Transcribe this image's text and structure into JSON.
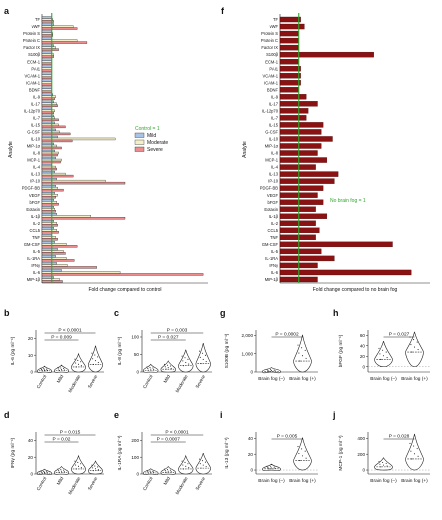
{
  "panel_letters": [
    "a",
    "f",
    "b",
    "c",
    "d",
    "e",
    "g",
    "h",
    "i",
    "j"
  ],
  "colors": {
    "mild": "#a9c3e6",
    "moderate": "#f3efc9",
    "severe": "#ec8c8c",
    "fog": "#8b1212",
    "ref_green": "#2fa82f",
    "bar_edge": "#222222",
    "violin_fill": "#ffffff"
  },
  "chart_data": [
    {
      "id": "a",
      "type": "bar",
      "orientation": "horizontal",
      "ylabel": "Analyte",
      "xlabel": "Fold change compared to control",
      "ref_line_label": "Control = 1",
      "legend": [
        "Mild",
        "Moderate",
        "Severe"
      ],
      "legend_position": "center-right",
      "xlim": [
        0,
        17
      ],
      "categories": [
        "TF",
        "vWF",
        "Protein S",
        "Protein C",
        "Factor IX",
        "S100β",
        "ECM-1",
        "PAI1",
        "VCAM-1",
        "ICAM-1",
        "BDNF",
        "IL-9",
        "IL-17",
        "IL-12p70",
        "IL-7",
        "IL-15",
        "G-CSF",
        "IL-10",
        "MIP-1α",
        "IL-8",
        "MCP-1",
        "IL-4",
        "IL-13",
        "IP-10",
        "PDGF-BB",
        "VEGF",
        "bFGF",
        "Eotaxin",
        "IL-1β",
        "IL-2",
        "CCL5",
        "TNF",
        "GM-CSF",
        "IL-5",
        "IL-1RA",
        "IFNγ",
        "IL-6",
        "MIP-1β"
      ],
      "series": [
        {
          "name": "Mild",
          "values": [
            1.0,
            1.2,
            1.0,
            1.0,
            1.2,
            1.0,
            1.0,
            1.0,
            1.0,
            1.0,
            1.0,
            1.1,
            1.2,
            1.0,
            1.2,
            1.3,
            1.4,
            1.6,
            1.2,
            1.3,
            1.4,
            1.0,
            1.3,
            1.5,
            1.4,
            1.3,
            1.2,
            1.2,
            1.5,
            1.2,
            1.2,
            1.0,
            1.3,
            1.6,
            1.4,
            1.5,
            2.0,
            1.2
          ]
        },
        {
          "name": "Moderate",
          "values": [
            1.1,
            3.2,
            1.1,
            3.6,
            1.4,
            1.2,
            1.0,
            1.0,
            1.0,
            1.0,
            1.0,
            1.4,
            1.5,
            1.3,
            1.3,
            1.7,
            1.8,
            7.5,
            1.5,
            1.7,
            2.0,
            1.4,
            2.4,
            6.5,
            1.6,
            1.6,
            1.5,
            1.3,
            5.0,
            1.5,
            1.5,
            1.4,
            2.5,
            2.2,
            2.5,
            2.6,
            8.0,
            1.8
          ]
        },
        {
          "name": "Severe",
          "values": [
            1.2,
            3.6,
            1.1,
            4.6,
            1.7,
            1.2,
            1.0,
            1.0,
            1.0,
            1.0,
            1.0,
            1.3,
            1.6,
            1.2,
            1.7,
            2.4,
            2.9,
            3.1,
            2.0,
            1.6,
            1.9,
            1.5,
            3.2,
            8.5,
            2.2,
            1.4,
            1.7,
            1.4,
            8.5,
            1.6,
            1.7,
            1.6,
            3.6,
            2.4,
            3.3,
            5.6,
            16.5,
            2.1
          ]
        }
      ]
    },
    {
      "id": "f",
      "type": "bar",
      "orientation": "horizontal",
      "ylabel": "Analyte",
      "xlabel": "Fold change compared to no brain fog",
      "ref_line_label": "No brain fog = 1",
      "xlim": [
        0,
        8
      ],
      "categories": [
        "TF",
        "vWF",
        "Protein S",
        "Protein C",
        "Factor IX",
        "S100β",
        "ECM-1",
        "PAI1",
        "VCAM-1",
        "ICAM-1",
        "BDNF",
        "IL-9",
        "IL-17",
        "IL-12p70",
        "IL-7",
        "IL-15",
        "G-CSF",
        "IL-10",
        "MIP-1α",
        "IL-8",
        "MCP-1",
        "IL-4",
        "IL-13",
        "IP-10",
        "PDGF-BB",
        "VEGF",
        "bFGF",
        "Eotaxin",
        "IL-1β",
        "IL-2",
        "CCL5",
        "TNF",
        "GM-CSF",
        "IL-5",
        "IL-1RA",
        "IFNγ",
        "IL-6",
        "MIP-1β"
      ],
      "values": [
        1.1,
        1.3,
        1.0,
        1.0,
        1.0,
        5.0,
        1.0,
        1.1,
        1.1,
        1.1,
        1.0,
        1.4,
        2.0,
        1.5,
        1.4,
        2.3,
        2.2,
        2.8,
        2.2,
        2.0,
        2.5,
        1.9,
        3.1,
        2.9,
        2.3,
        2.0,
        2.3,
        1.9,
        2.5,
        1.9,
        2.1,
        1.9,
        6.0,
        2.2,
        2.9,
        2.0,
        7.0,
        2.0
      ]
    },
    {
      "id": "b",
      "type": "violin",
      "ylabel": "IL-6 (pg ml⁻¹)",
      "categories": [
        "Control",
        "Mild",
        "Moderate",
        "Severe"
      ],
      "yticks": [
        "0",
        "10",
        "20"
      ],
      "ylim": [
        0,
        25
      ],
      "comparisons": [
        {
          "label": "P = 0.009",
          "pair": [
            "Control",
            "Moderate"
          ]
        },
        {
          "label": "P < 0.0001",
          "pair": [
            "Control",
            "Severe"
          ]
        }
      ],
      "series": [
        {
          "values": [
            0.7,
            0.9,
            3.0,
            4.5
          ]
        }
      ]
    },
    {
      "id": "c",
      "type": "violin",
      "ylabel": "IL-8 (pg ml⁻¹)",
      "categories": [
        "Control",
        "Mild",
        "Moderate",
        "Severe"
      ],
      "yticks": [
        "0",
        "50",
        "100"
      ],
      "ylim": [
        0,
        120
      ],
      "comparisons": [
        {
          "label": "P = 0.027",
          "pair": [
            "Control",
            "Moderate"
          ]
        },
        {
          "label": "P = 0.003",
          "pair": [
            "Control",
            "Severe"
          ]
        }
      ],
      "series": [
        {
          "values": [
            5,
            8,
            18,
            24
          ]
        }
      ]
    },
    {
      "id": "d",
      "type": "violin",
      "ylabel": "IFNγ (pg ml⁻¹)",
      "categories": [
        "Control",
        "Mild",
        "Moderate",
        "Severe"
      ],
      "yticks": [
        "0",
        "20",
        "40"
      ],
      "ylim": [
        0,
        50
      ],
      "comparisons": [
        {
          "label": "P = 0.02",
          "pair": [
            "Control",
            "Moderate"
          ]
        },
        {
          "label": "P = 0.015",
          "pair": [
            "Control",
            "Severe"
          ]
        }
      ],
      "series": [
        {
          "values": [
            1,
            2,
            6,
            4
          ]
        }
      ]
    },
    {
      "id": "e",
      "type": "violin",
      "ylabel": "IL-1RA (pg ml⁻¹)",
      "categories": [
        "Control",
        "Mild",
        "Moderate",
        "Severe"
      ],
      "yticks": [
        "0",
        "100",
        "200"
      ],
      "ylim": [
        0,
        250
      ],
      "comparisons": [
        {
          "label": "P = 0.0007",
          "pair": [
            "Control",
            "Moderate"
          ]
        },
        {
          "label": "P < 0.0001",
          "pair": [
            "Control",
            "Severe"
          ]
        }
      ],
      "series": [
        {
          "values": [
            6,
            10,
            30,
            35
          ]
        }
      ]
    },
    {
      "id": "g",
      "type": "violin",
      "ylabel": "S100B (pg ml⁻¹)",
      "categories": [
        "Brain fog (–)",
        "Brain fog (+)"
      ],
      "yticks": [
        "0",
        "1,000",
        "2,000"
      ],
      "ylim": [
        0,
        2300
      ],
      "comparisons": [
        {
          "label": "P = 0.0002",
          "pair": [
            "Brain fog (–)",
            "Brain fog (+)"
          ]
        }
      ],
      "series": [
        {
          "values": [
            40,
            600
          ]
        }
      ]
    },
    {
      "id": "h",
      "type": "violin",
      "ylabel": "bFGF (pg ml⁻¹)",
      "categories": [
        "Brain fog (–)",
        "Brain fog (+)"
      ],
      "yticks": [
        "0",
        "20",
        "40",
        "60"
      ],
      "ylim": [
        -10,
        70
      ],
      "comparisons": [
        {
          "label": "P = 0.027",
          "pair": [
            "Brain fog (–)",
            "Brain fog (+)"
          ]
        }
      ],
      "series": [
        {
          "values": [
            14,
            28
          ]
        }
      ]
    },
    {
      "id": "i",
      "type": "violin",
      "ylabel": "IL-13 (pg ml⁻¹)",
      "categories": [
        "Brain fog (–)",
        "Brain fog (+)"
      ],
      "yticks": [
        "0",
        "20",
        "40"
      ],
      "ylim": [
        -5,
        48
      ],
      "comparisons": [
        {
          "label": "P = 0.005",
          "pair": [
            "Brain fog (–)",
            "Brain fog (+)"
          ]
        }
      ],
      "series": [
        {
          "values": [
            1.5,
            12
          ]
        }
      ]
    },
    {
      "id": "j",
      "type": "violin",
      "ylabel": "MCP-1 (pg ml⁻¹)",
      "categories": [
        "Brain fog (–)",
        "Brain fog (+)"
      ],
      "yticks": [
        "0",
        "200",
        "400"
      ],
      "ylim": [
        -50,
        480
      ],
      "comparisons": [
        {
          "label": "P = 0.028",
          "pair": [
            "Brain fog (–)",
            "Brain fog (+)"
          ]
        }
      ],
      "series": [
        {
          "values": [
            40,
            140
          ]
        }
      ]
    }
  ]
}
